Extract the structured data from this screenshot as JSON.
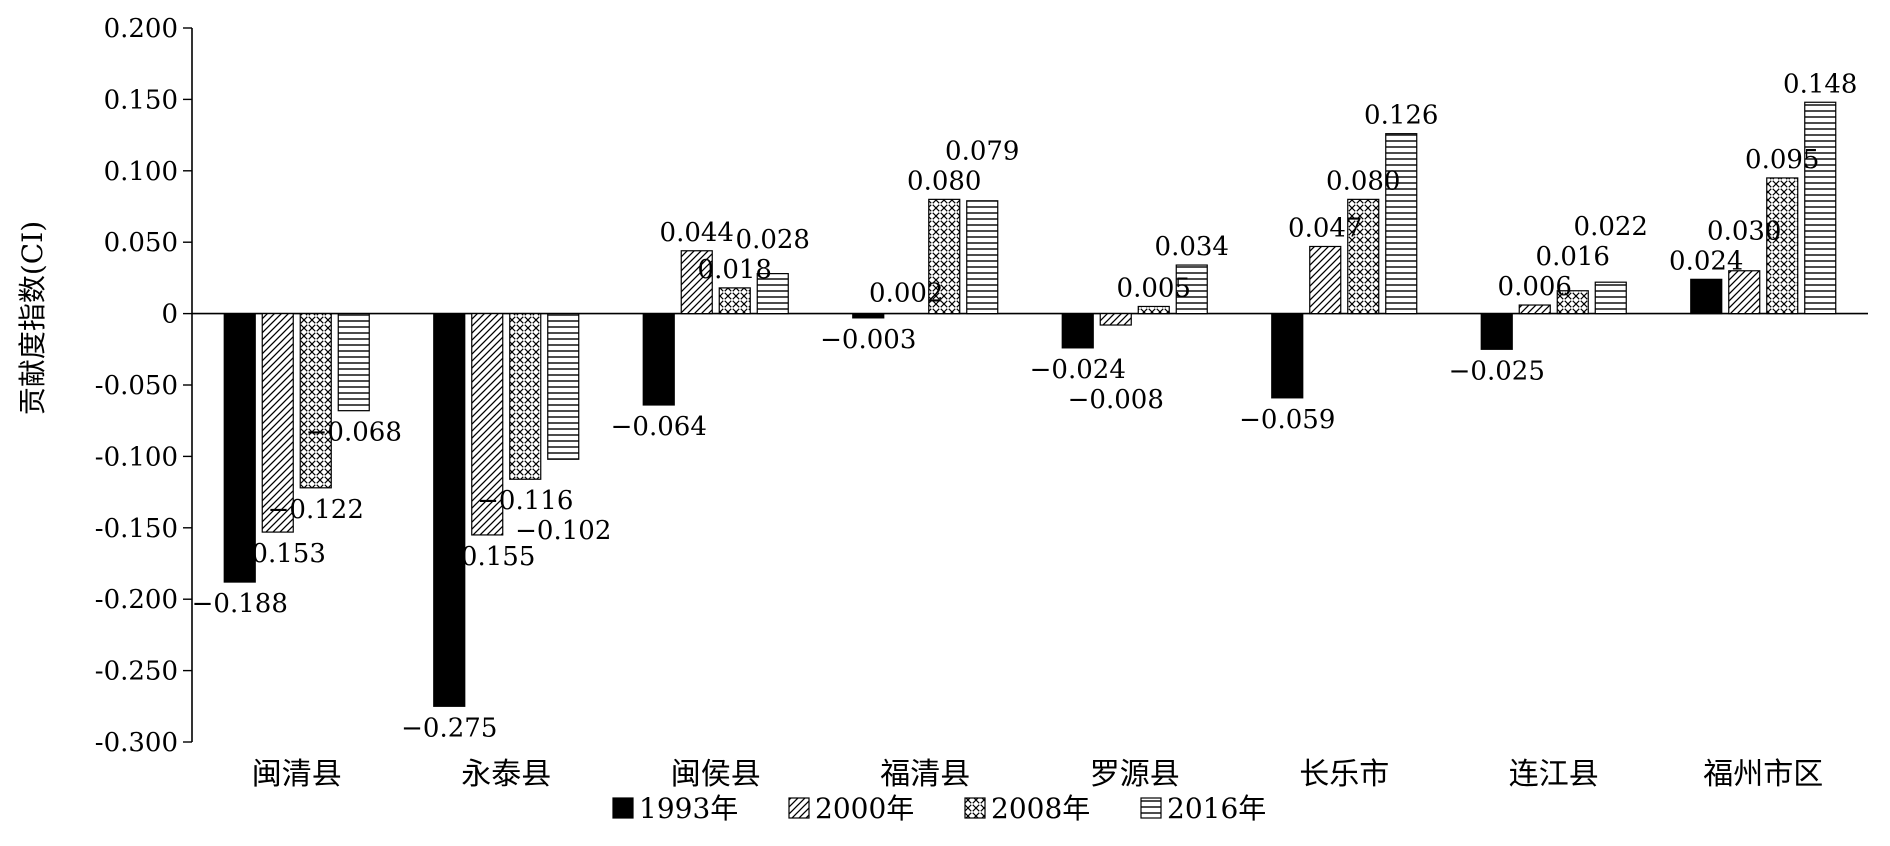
{
  "chart_data": {
    "type": "bar",
    "title": "",
    "xlabel": "",
    "ylabel": "贡献度指数(CI)",
    "ylim": [
      -0.3,
      0.2
    ],
    "yticks": [
      0.2,
      0.15,
      0.1,
      0.05,
      0,
      -0.05,
      -0.1,
      -0.15,
      -0.2,
      -0.25,
      -0.3
    ],
    "ytick_labels": [
      "0.200",
      "0.150",
      "0.100",
      "0.050",
      "0",
      "-0.050",
      "-0.100",
      "-0.150",
      "-0.200",
      "-0.250",
      "-0.300"
    ],
    "categories": [
      "闽清县",
      "永泰县",
      "闽侯县",
      "福清县",
      "罗源县",
      "长乐市",
      "连江县",
      "福州市区"
    ],
    "series": [
      {
        "name": "1993年",
        "pattern": "solid",
        "values": [
          -0.188,
          -0.275,
          -0.064,
          -0.003,
          -0.024,
          -0.059,
          -0.025,
          0.024
        ],
        "labels": [
          "−0.188",
          "−0.275",
          "−0.064",
          "−0.003",
          "−0.024",
          "−0.059",
          "−0.025",
          "0.024"
        ]
      },
      {
        "name": "2000年",
        "pattern": "diagonal",
        "values": [
          -0.153,
          -0.155,
          0.044,
          null,
          -0.008,
          0.047,
          0.006,
          0.03
        ],
        "labels": [
          "−0.153",
          "−0.155",
          "0.044",
          "",
          "−0.008",
          "0.047",
          "0.006",
          "0.030"
        ]
      },
      {
        "name": "2008年",
        "pattern": "crosshatch",
        "values": [
          -0.122,
          -0.116,
          0.018,
          0.08,
          0.005,
          0.08,
          0.016,
          0.095
        ],
        "labels": [
          "−0.122",
          "−0.116",
          "0.018",
          "0.080",
          "0.005",
          "0.080",
          "0.016",
          "0.095"
        ]
      },
      {
        "name": "2016年",
        "pattern": "horizontal",
        "values": [
          -0.068,
          -0.102,
          0.028,
          0.079,
          0.034,
          0.126,
          0.022,
          0.148
        ],
        "labels": [
          "−0.068",
          "−0.102",
          "0.028",
          "0.079",
          "0.034",
          "0.126",
          "0.022",
          "0.148"
        ]
      }
    ],
    "extra_labels": [
      {
        "category_index": 3,
        "text": "0.002"
      }
    ],
    "legend": {
      "placement": "bottom-center",
      "items": [
        "1993年",
        "2000年",
        "2008年",
        "2016年"
      ]
    },
    "grid": false,
    "colors": {
      "bar_stroke": "#000000",
      "solid_fill": "#000000",
      "background": "#ffffff"
    }
  }
}
